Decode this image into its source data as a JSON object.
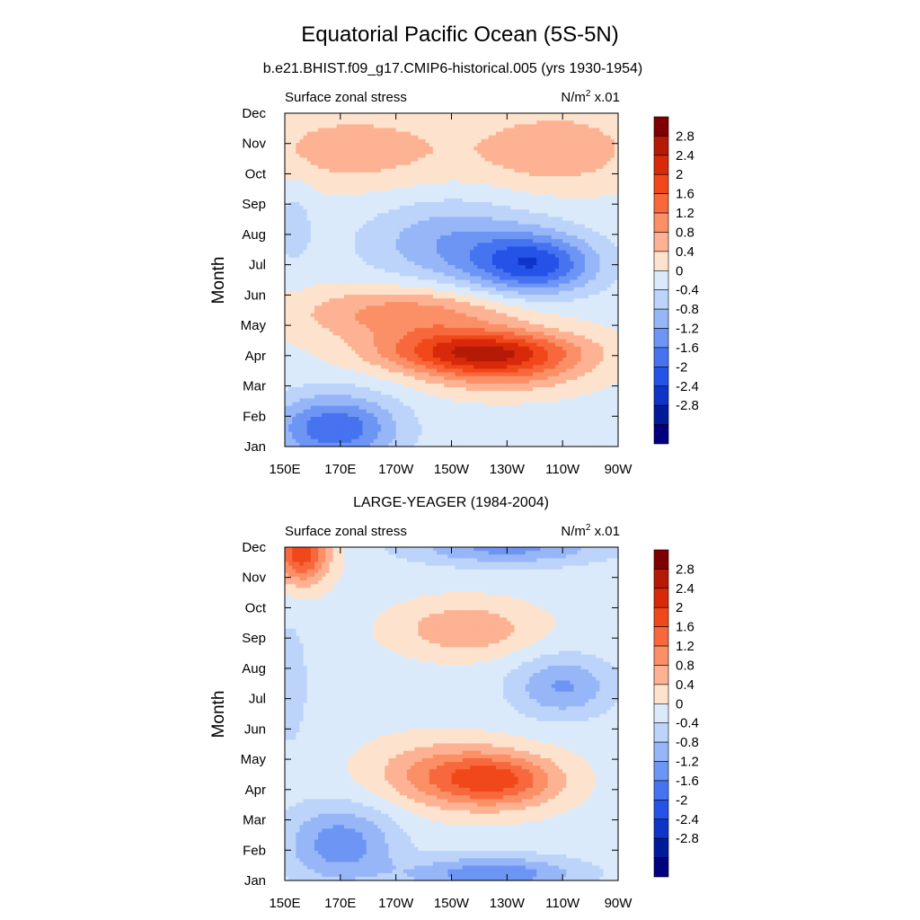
{
  "figure": {
    "title": "Equatorial Pacific Ocean (5S-5N)"
  },
  "chart_data": [
    {
      "type": "heatmap",
      "title": "b.e21.BHIST.f09_g17.CMIP6-historical.005 (yrs 1930-1954)",
      "left_label": "Surface zonal stress",
      "units": "N/m",
      "units_sup": "2",
      "units_suffix": "x.01",
      "ylabel": "Month",
      "x_ticks": [
        "150E",
        "170E",
        "170W",
        "150W",
        "130W",
        "110W",
        "90W"
      ],
      "y_ticks": [
        "Jan",
        "Feb",
        "Mar",
        "Apr",
        "May",
        "Jun",
        "Jul",
        "Aug",
        "Sep",
        "Oct",
        "Nov",
        "Dec"
      ],
      "x_lon": [
        150,
        170,
        190,
        210,
        230,
        250,
        270
      ],
      "xlim": [
        150,
        270
      ],
      "ylim": [
        1,
        12
      ],
      "features": [
        {
          "lon": 220,
          "month": 4.15,
          "value": 2.2,
          "slon": 35,
          "smonth": 0.7
        },
        {
          "lon": 195,
          "month": 5.4,
          "value": 1.2,
          "slon": 40,
          "smonth": 0.9
        },
        {
          "lon": 228,
          "month": 3.5,
          "value": 1.0,
          "slon": 30,
          "smonth": 0.8
        },
        {
          "lon": 240,
          "month": 7.0,
          "value": -2.0,
          "slon": 22,
          "smonth": 1.0
        },
        {
          "lon": 210,
          "month": 7.7,
          "value": -1.0,
          "slon": 30,
          "smonth": 1.4
        },
        {
          "lon": 168,
          "month": 1.6,
          "value": -1.8,
          "slon": 22,
          "smonth": 1.1
        },
        {
          "lon": 175,
          "month": 10.8,
          "value": 0.8,
          "slon": 38,
          "smonth": 1.3
        },
        {
          "lon": 248,
          "month": 10.8,
          "value": 0.9,
          "slon": 30,
          "smonth": 1.3
        },
        {
          "lon": 153,
          "month": 8.4,
          "value": -0.4,
          "slon": 8,
          "smonth": 1.6
        }
      ]
    },
    {
      "type": "heatmap",
      "title": "LARGE-YEAGER (1984-2004)",
      "left_label": "Surface zonal stress",
      "units": "N/m",
      "units_sup": "2",
      "units_suffix": "x.01",
      "ylabel": "Month",
      "x_ticks": [
        "150E",
        "170E",
        "170W",
        "150W",
        "130W",
        "110W",
        "90W"
      ],
      "y_ticks": [
        "Jan",
        "Feb",
        "Mar",
        "Apr",
        "May",
        "Jun",
        "Jul",
        "Aug",
        "Sep",
        "Oct",
        "Nov",
        "Dec"
      ],
      "x_lon": [
        150,
        170,
        190,
        210,
        230,
        250,
        270
      ],
      "xlim": [
        150,
        270
      ],
      "ylim": [
        1,
        12
      ],
      "features": [
        {
          "lon": 156,
          "month": 11.8,
          "value": 2.0,
          "slon": 10,
          "smonth": 1.0
        },
        {
          "lon": 228,
          "month": 4.3,
          "value": 1.6,
          "slon": 22,
          "smonth": 0.9
        },
        {
          "lon": 205,
          "month": 4.5,
          "value": 1.0,
          "slon": 25,
          "smonth": 1.1
        },
        {
          "lon": 215,
          "month": 9.3,
          "value": 0.9,
          "slon": 25,
          "smonth": 0.9
        },
        {
          "lon": 170,
          "month": 2.2,
          "value": -1.3,
          "slon": 20,
          "smonth": 1.3
        },
        {
          "lon": 225,
          "month": 1.2,
          "value": -1.4,
          "slon": 30,
          "smonth": 0.6
        },
        {
          "lon": 250,
          "month": 7.4,
          "value": -1.1,
          "slon": 18,
          "smonth": 1.0
        },
        {
          "lon": 230,
          "month": 12.0,
          "value": -1.2,
          "slon": 35,
          "smonth": 0.6
        },
        {
          "lon": 152,
          "month": 7.5,
          "value": -0.6,
          "slon": 6,
          "smonth": 2.0
        }
      ]
    }
  ],
  "colorbar": {
    "labels": [
      "2.8",
      "2.4",
      "2",
      "1.6",
      "1.2",
      "0.8",
      "0.4",
      "0",
      "-0.4",
      "-0.8",
      "-1.2",
      "-1.6",
      "-2",
      "-2.4",
      "-2.8"
    ],
    "levels": [
      2.8,
      2.4,
      2.0,
      1.6,
      1.2,
      0.8,
      0.4,
      0,
      -0.4,
      -0.8,
      -1.2,
      -1.6,
      -2.0,
      -2.4,
      -2.8
    ],
    "colors": [
      "#7f0000",
      "#b51a07",
      "#d8290a",
      "#f0481a",
      "#f8683d",
      "#fb8f66",
      "#fcb293",
      "#fde3cd",
      "#dbeafa",
      "#bcd3fa",
      "#97b6f8",
      "#6d95f4",
      "#4673f0",
      "#2553e8",
      "#0f34c8",
      "#001a9c",
      "#00007f"
    ]
  }
}
